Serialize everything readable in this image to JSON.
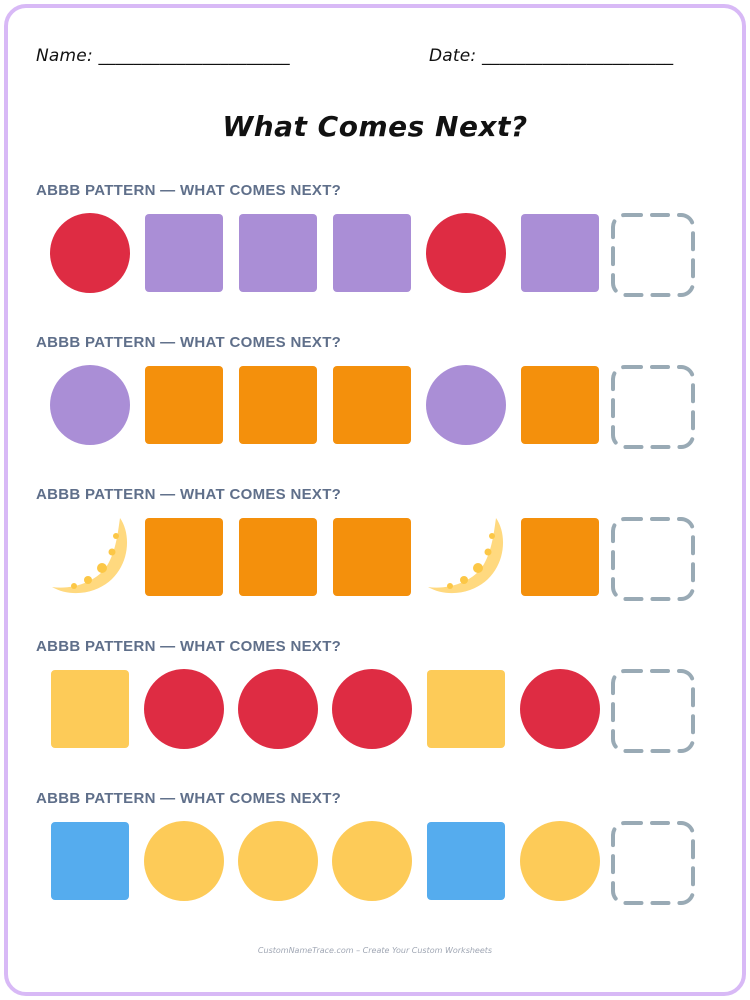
{
  "worksheet": {
    "name_label": "Name: ______________________",
    "date_label": "Date: ______________________",
    "title": "What Comes Next?",
    "footer": "CustomNameTrace.com – Create Your Custom Worksheets"
  },
  "colors": {
    "frame_border": "#d8b9f6",
    "red": "#de2c43",
    "purple": "#aa8ed6",
    "orange": "#f4900c",
    "yellow": "#fdcb58",
    "blue": "#55acee",
    "moon": "#ffd97f",
    "moon_spot": "#fcc746",
    "blank_dash": "#99aab5",
    "label_text": "#5f6f8a"
  },
  "rows": [
    {
      "label": "ABBB PATTERN — WHAT COMES NEXT?",
      "shapes": [
        {
          "shape": "circle",
          "color": "red"
        },
        {
          "shape": "square",
          "color": "purple"
        },
        {
          "shape": "square",
          "color": "purple"
        },
        {
          "shape": "square",
          "color": "purple"
        },
        {
          "shape": "circle",
          "color": "red"
        },
        {
          "shape": "square",
          "color": "purple"
        },
        {
          "shape": "blank",
          "color": "blank_dash"
        }
      ]
    },
    {
      "label": "ABBB PATTERN — WHAT COMES NEXT?",
      "shapes": [
        {
          "shape": "circle",
          "color": "purple"
        },
        {
          "shape": "square",
          "color": "orange"
        },
        {
          "shape": "square",
          "color": "orange"
        },
        {
          "shape": "square",
          "color": "orange"
        },
        {
          "shape": "circle",
          "color": "purple"
        },
        {
          "shape": "square",
          "color": "orange"
        },
        {
          "shape": "blank",
          "color": "blank_dash"
        }
      ]
    },
    {
      "label": "ABBB PATTERN — WHAT COMES NEXT?",
      "shapes": [
        {
          "shape": "moon",
          "color": "moon"
        },
        {
          "shape": "square",
          "color": "orange"
        },
        {
          "shape": "square",
          "color": "orange"
        },
        {
          "shape": "square",
          "color": "orange"
        },
        {
          "shape": "moon",
          "color": "moon"
        },
        {
          "shape": "square",
          "color": "orange"
        },
        {
          "shape": "blank",
          "color": "blank_dash"
        }
      ]
    },
    {
      "label": "ABBB PATTERN — WHAT COMES NEXT?",
      "shapes": [
        {
          "shape": "square",
          "color": "yellow"
        },
        {
          "shape": "circle",
          "color": "red"
        },
        {
          "shape": "circle",
          "color": "red"
        },
        {
          "shape": "circle",
          "color": "red"
        },
        {
          "shape": "square",
          "color": "yellow"
        },
        {
          "shape": "circle",
          "color": "red"
        },
        {
          "shape": "blank",
          "color": "blank_dash"
        }
      ]
    },
    {
      "label": "ABBB PATTERN — WHAT COMES NEXT?",
      "shapes": [
        {
          "shape": "square",
          "color": "blue"
        },
        {
          "shape": "circle",
          "color": "yellow"
        },
        {
          "shape": "circle",
          "color": "yellow"
        },
        {
          "shape": "circle",
          "color": "yellow"
        },
        {
          "shape": "square",
          "color": "blue"
        },
        {
          "shape": "circle",
          "color": "yellow"
        },
        {
          "shape": "blank",
          "color": "blank_dash"
        }
      ]
    }
  ]
}
